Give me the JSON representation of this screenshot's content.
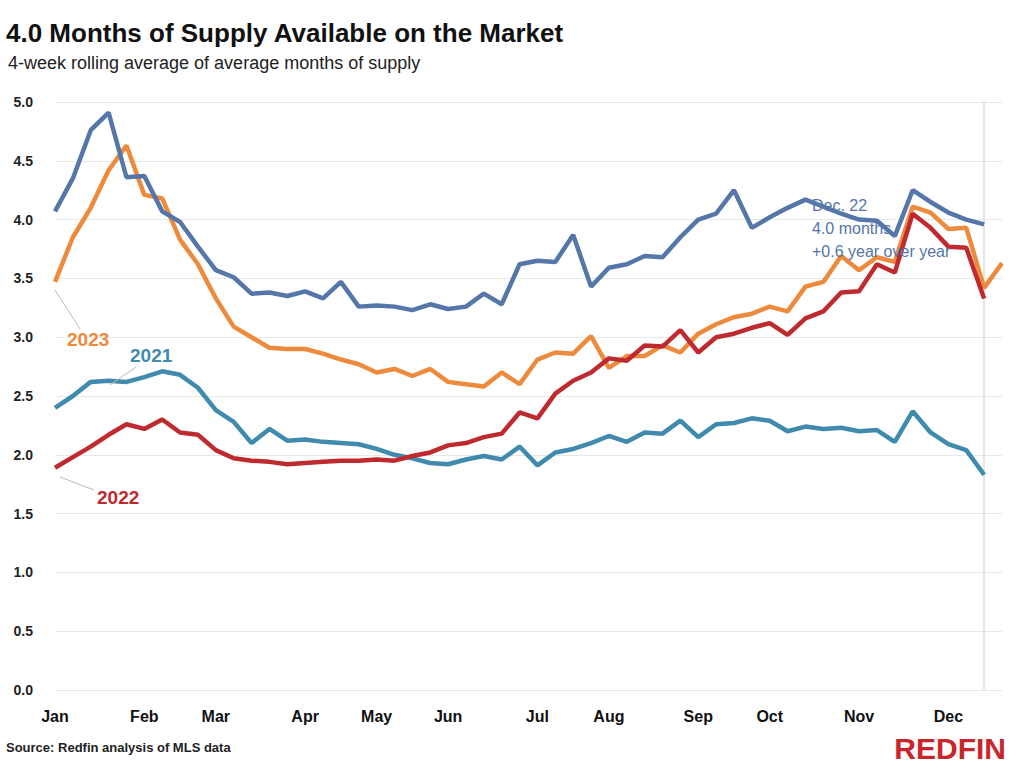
{
  "chart_data": {
    "type": "line",
    "title": "4.0 Months of Supply Available on the Market",
    "subtitle": "4-week rolling average of average months of supply",
    "source": "Source: Redfin analysis of MLS data",
    "logo": "REDFIN",
    "annotation": [
      "Dec. 22",
      "4.0 months",
      "+0.6 year over year"
    ],
    "categories": [
      "Jan",
      null,
      null,
      null,
      null,
      "Feb",
      null,
      null,
      null,
      "Mar",
      null,
      null,
      null,
      null,
      "Apr",
      null,
      null,
      null,
      "May",
      null,
      null,
      null,
      "Jun",
      null,
      null,
      null,
      null,
      "Jul",
      null,
      null,
      null,
      "Aug",
      null,
      null,
      null,
      null,
      "Sep",
      null,
      null,
      null,
      "Oct",
      null,
      null,
      null,
      null,
      "Nov",
      null,
      null,
      null,
      null,
      "Dec",
      null,
      null,
      null
    ],
    "ylim": [
      0,
      5
    ],
    "yticks": [
      {
        "value": 0,
        "label": "0.0"
      },
      0.5,
      {
        "value": 1,
        "label": "1.0"
      },
      1.5,
      {
        "value": 2,
        "label": "2.0"
      },
      2.5,
      {
        "value": 3,
        "label": "3.0"
      },
      3.5,
      {
        "value": 4,
        "label": "4.0"
      },
      4.5,
      {
        "value": 5,
        "label": "5.0"
      }
    ],
    "grid": true,
    "series": [
      {
        "name": "2021",
        "color": "#3f8aad",
        "values": [
          2.4,
          2.5,
          2.62,
          2.63,
          2.62,
          2.66,
          2.71,
          2.68,
          2.57,
          2.38,
          2.28,
          2.1,
          2.22,
          2.12,
          2.13,
          2.11,
          2.1,
          2.09,
          2.05,
          2.0,
          1.97,
          1.93,
          1.92,
          1.96,
          1.99,
          1.96,
          2.07,
          1.91,
          2.02,
          2.05,
          2.1,
          2.16,
          2.11,
          2.19,
          2.18,
          2.29,
          2.15,
          2.26,
          2.27,
          2.31,
          2.29,
          2.2,
          2.24,
          2.22,
          2.23,
          2.2,
          2.21,
          2.11,
          2.37,
          2.19,
          2.09,
          2.04,
          1.83,
          null
        ]
      },
      {
        "name": "2023",
        "color": "#ee8a3c",
        "values": [
          3.47,
          3.85,
          4.1,
          4.42,
          4.63,
          4.21,
          4.18,
          3.83,
          3.62,
          3.33,
          3.09,
          3.0,
          2.91,
          2.9,
          2.9,
          2.86,
          2.81,
          2.77,
          2.7,
          2.73,
          2.67,
          2.73,
          2.62,
          2.6,
          2.58,
          2.7,
          2.6,
          2.81,
          2.87,
          2.86,
          3.01,
          2.74,
          2.84,
          2.84,
          2.93,
          2.87,
          3.03,
          3.11,
          3.17,
          3.2,
          3.26,
          3.22,
          3.43,
          3.47,
          3.69,
          3.57,
          3.68,
          3.64,
          4.11,
          4.06,
          3.92,
          3.93,
          3.42,
          3.63
        ]
      },
      {
        "name": "2022",
        "color": "#bf2a2f",
        "values": [
          1.89,
          1.98,
          2.07,
          2.17,
          2.26,
          2.22,
          2.3,
          2.19,
          2.17,
          2.04,
          1.97,
          1.95,
          1.94,
          1.92,
          1.93,
          1.94,
          1.95,
          1.95,
          1.96,
          1.95,
          1.99,
          2.02,
          2.08,
          2.1,
          2.15,
          2.18,
          2.36,
          2.31,
          2.52,
          2.63,
          2.7,
          2.82,
          2.8,
          2.93,
          2.92,
          3.06,
          2.87,
          3.0,
          3.03,
          3.08,
          3.12,
          3.02,
          3.16,
          3.22,
          3.38,
          3.39,
          3.62,
          3.55,
          4.05,
          3.93,
          3.77,
          3.76,
          3.33,
          null
        ]
      },
      {
        "color": "#5476a8",
        "values": [
          4.07,
          4.35,
          4.76,
          4.91,
          4.36,
          4.37,
          4.07,
          3.98,
          3.77,
          3.57,
          3.51,
          3.37,
          3.38,
          3.35,
          3.39,
          3.33,
          3.47,
          3.26,
          3.27,
          3.26,
          3.23,
          3.28,
          3.24,
          3.26,
          3.37,
          3.28,
          3.62,
          3.65,
          3.64,
          3.87,
          3.43,
          3.59,
          3.62,
          3.69,
          3.68,
          3.85,
          4.0,
          4.05,
          4.25,
          3.93,
          4.02,
          4.1,
          4.17,
          4.11,
          4.05,
          4.0,
          3.99,
          3.86,
          4.25,
          4.15,
          4.06,
          4.0,
          3.96,
          null
        ]
      }
    ]
  }
}
